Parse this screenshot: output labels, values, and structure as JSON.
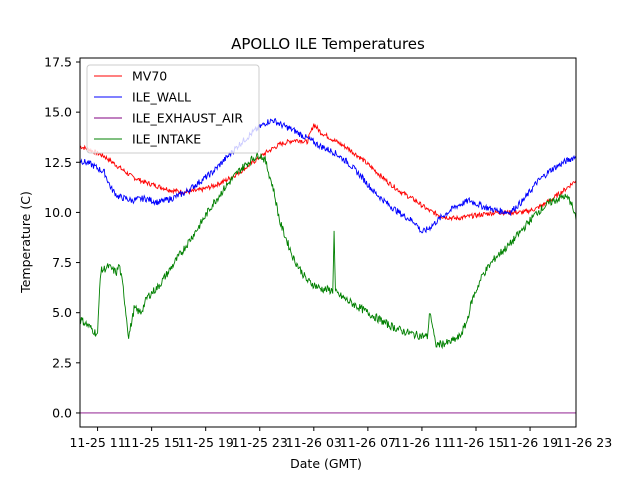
{
  "chart_data": {
    "type": "line",
    "title": "APOLLO ILE Temperatures",
    "xlabel": "Date (GMT)",
    "ylabel": "Temperature (C)",
    "xlim": [
      9.7,
      46.4
    ],
    "ylim": [
      -0.7,
      17.7
    ],
    "grid": false,
    "legend_position": "top-left",
    "x_ticks": [
      {
        "value": 11,
        "label": "11-25 11"
      },
      {
        "value": 15,
        "label": "11-25 15"
      },
      {
        "value": 19,
        "label": "11-25 19"
      },
      {
        "value": 23,
        "label": "11-25 23"
      },
      {
        "value": 27,
        "label": "11-26 03"
      },
      {
        "value": 31,
        "label": "11-26 07"
      },
      {
        "value": 35,
        "label": "11-26 11"
      },
      {
        "value": 39,
        "label": "11-26 15"
      },
      {
        "value": 43,
        "label": "11-26 19"
      },
      {
        "value": 47,
        "label": "11-26 23"
      }
    ],
    "y_ticks": [
      {
        "value": 0.0,
        "label": "0.0"
      },
      {
        "value": 2.5,
        "label": "2.5"
      },
      {
        "value": 5.0,
        "label": "5.0"
      },
      {
        "value": 7.5,
        "label": "7.5"
      },
      {
        "value": 10.0,
        "label": "10.0"
      },
      {
        "value": 12.5,
        "label": "12.5"
      },
      {
        "value": 15.0,
        "label": "15.0"
      },
      {
        "value": 17.5,
        "label": "17.5"
      }
    ],
    "series": [
      {
        "name": "MV70",
        "color": "#ff0000",
        "x": [
          9.7,
          10.5,
          11.5,
          12.5,
          13.5,
          14.5,
          15.5,
          16.5,
          17.5,
          18.5,
          19.5,
          20.5,
          21.5,
          22.5,
          23.5,
          24.5,
          25.5,
          26.0,
          26.5,
          27.0,
          27.5,
          28.5,
          29.5,
          30.5,
          31.5,
          32.5,
          33.5,
          34.5,
          35.5,
          36.5,
          37.5,
          38.5,
          39.5,
          40.5,
          41.5,
          42.5,
          43.5,
          44.5,
          45.5,
          46.4
        ],
        "y": [
          13.3,
          13.1,
          12.8,
          12.3,
          11.8,
          11.5,
          11.3,
          11.1,
          11.0,
          11.1,
          11.3,
          11.6,
          12.0,
          12.5,
          13.0,
          13.4,
          13.6,
          13.6,
          13.5,
          14.4,
          14.0,
          13.6,
          13.2,
          12.7,
          12.1,
          11.5,
          11.0,
          10.6,
          10.1,
          9.8,
          9.7,
          9.8,
          9.9,
          10.0,
          10.0,
          10.0,
          10.2,
          10.6,
          11.1,
          11.6
        ]
      },
      {
        "name": "ILE_WALL",
        "color": "#0000ff",
        "x": [
          9.7,
          10.5,
          11.5,
          12.0,
          12.5,
          13.5,
          14.5,
          15.5,
          16.5,
          17.5,
          18.5,
          19.5,
          20.5,
          21.5,
          22.5,
          23.5,
          24.0,
          24.5,
          25.5,
          26.5,
          27.5,
          28.5,
          29.5,
          30.5,
          31.5,
          32.5,
          33.5,
          34.5,
          35.0,
          35.5,
          36.5,
          37.5,
          38.5,
          39.5,
          40.5,
          41.5,
          42.5,
          43.5,
          44.5,
          45.5,
          46.4
        ],
        "y": [
          12.6,
          12.4,
          12.0,
          11.2,
          10.8,
          10.6,
          10.7,
          10.5,
          10.7,
          11.0,
          11.5,
          12.0,
          12.7,
          13.4,
          14.0,
          14.5,
          14.6,
          14.4,
          14.1,
          13.7,
          13.3,
          13.0,
          12.5,
          11.8,
          11.0,
          10.4,
          9.9,
          9.5,
          9.0,
          9.2,
          9.8,
          10.3,
          10.6,
          10.3,
          10.1,
          10.0,
          10.6,
          11.5,
          12.1,
          12.5,
          12.8
        ]
      },
      {
        "name": "ILE_EXHAUST_AIR",
        "color": "#800080",
        "x": [
          9.7,
          46.4
        ],
        "y": [
          0.0,
          0.0
        ]
      },
      {
        "name": "ILE_INTAKE",
        "color": "#008000",
        "x": [
          9.7,
          10.4,
          11.0,
          11.2,
          11.3,
          11.8,
          12.4,
          12.6,
          12.9,
          13.3,
          13.6,
          13.7,
          14.2,
          14.7,
          15.5,
          16.5,
          17.5,
          18.5,
          19.5,
          20.5,
          21.5,
          22.5,
          23.0,
          23.4,
          24.0,
          24.5,
          25.5,
          26.5,
          27.5,
          28.4,
          28.5,
          28.6,
          29.5,
          30.5,
          31.5,
          32.5,
          33.5,
          34.5,
          35.4,
          35.6,
          36.0,
          37.0,
          37.8,
          38.3,
          38.7,
          39.5,
          40.5,
          41.5,
          42.5,
          43.5,
          44.5,
          45.5,
          46.0,
          46.4
        ],
        "y": [
          4.7,
          4.3,
          3.9,
          6.9,
          7.1,
          7.3,
          7.0,
          7.4,
          6.2,
          3.8,
          4.8,
          5.2,
          5.0,
          5.8,
          6.3,
          7.3,
          8.3,
          9.3,
          10.4,
          11.3,
          12.1,
          12.7,
          12.9,
          12.6,
          11.2,
          9.5,
          7.7,
          6.6,
          6.2,
          6.1,
          9.0,
          6.0,
          5.6,
          5.2,
          4.8,
          4.4,
          4.1,
          3.9,
          3.8,
          5.1,
          3.4,
          3.5,
          3.8,
          4.5,
          5.6,
          6.9,
          7.8,
          8.4,
          9.2,
          10.0,
          10.5,
          10.8,
          10.6,
          9.6
        ]
      }
    ]
  }
}
